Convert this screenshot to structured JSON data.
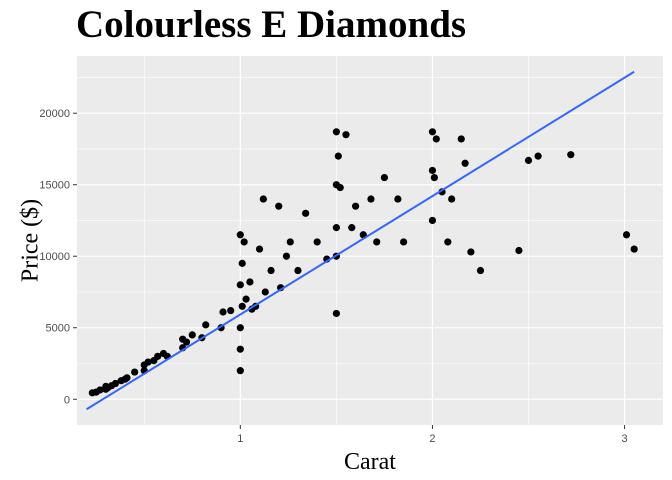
{
  "chart_data": {
    "type": "scatter",
    "title": "Colourless E Diamonds",
    "xlabel": "Carat",
    "ylabel": "Price ($)",
    "xlim": [
      0.15,
      3.2
    ],
    "ylim": [
      -1800,
      24000
    ],
    "x_ticks": [
      1,
      2,
      3
    ],
    "y_ticks": [
      0,
      5000,
      10000,
      15000,
      20000
    ],
    "x_minor_ticks": [
      0.5,
      1.5,
      2.5
    ],
    "y_minor_ticks": [
      2500,
      7500,
      12500,
      17500,
      22500
    ],
    "grid": true,
    "legend": "none",
    "panel_background": "#ebebeb",
    "grid_color": "#ffffff",
    "point_color": "#000000",
    "trend_color": "#3366ff",
    "series": [
      {
        "kind": "points",
        "x": [
          0.23,
          0.25,
          0.27,
          0.3,
          0.3,
          0.31,
          0.33,
          0.35,
          0.38,
          0.4,
          0.41,
          0.45,
          0.5,
          0.5,
          0.52,
          0.55,
          0.57,
          0.6,
          0.62,
          0.7,
          0.7,
          0.72,
          0.75,
          0.8,
          0.82,
          0.9,
          0.91,
          0.95,
          1.0,
          1.0,
          1.0,
          1.0,
          1.0,
          1.01,
          1.01,
          1.02,
          1.03,
          1.05,
          1.06,
          1.08,
          1.1,
          1.12,
          1.13,
          1.16,
          1.2,
          1.21,
          1.24,
          1.26,
          1.3,
          1.34,
          1.4,
          1.45,
          1.5,
          1.5,
          1.5,
          1.5,
          1.5,
          1.51,
          1.52,
          1.55,
          1.58,
          1.6,
          1.64,
          1.68,
          1.71,
          1.75,
          1.82,
          1.85,
          2.0,
          2.0,
          2.0,
          2.01,
          2.02,
          2.05,
          2.08,
          2.1,
          2.15,
          2.17,
          2.2,
          2.25,
          2.45,
          2.5,
          2.55,
          2.72,
          3.01,
          3.05
        ],
        "y": [
          450,
          500,
          650,
          700,
          900,
          800,
          950,
          1100,
          1300,
          1400,
          1500,
          1900,
          2000,
          2400,
          2600,
          2700,
          3000,
          3200,
          3000,
          3600,
          4200,
          4000,
          4500,
          4300,
          5200,
          5000,
          6100,
          6200,
          11500,
          8000,
          5000,
          3500,
          2000,
          9500,
          6500,
          11000,
          7000,
          8200,
          6300,
          6500,
          10500,
          14000,
          7500,
          9000,
          13500,
          7800,
          10000,
          11000,
          9000,
          13000,
          11000,
          9800,
          18700,
          15000,
          12000,
          10000,
          6000,
          17000,
          14800,
          18500,
          12000,
          13500,
          11500,
          14000,
          11000,
          15500,
          14000,
          11000,
          18700,
          16000,
          12500,
          15500,
          18200,
          14500,
          11000,
          14000,
          18200,
          16500,
          10300,
          9000,
          10400,
          16700,
          17000,
          17100,
          11500,
          10500
        ]
      },
      {
        "kind": "trend",
        "x": [
          0.2,
          3.05
        ],
        "y": [
          -700,
          22900
        ]
      }
    ]
  }
}
